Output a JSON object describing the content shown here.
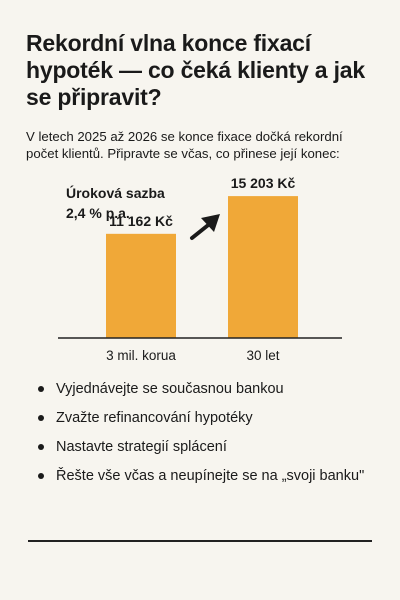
{
  "header": {
    "title": "Rekordní vlna konce fixací hypoték — co čeká klienty a jak se připravit?",
    "intro": "V letech 2025 až 2026 se konce fixace dočká rekordní počet klientů. Připravte se včas, co přinese její konec:"
  },
  "chart_data": {
    "type": "bar",
    "categories": [
      "3 mil. korua",
      "30 let"
    ],
    "values": [
      11162,
      15203
    ],
    "value_labels": [
      "11 162 Kč",
      "15 203 Kč"
    ],
    "annotation": [
      "Úroková sazba",
      "2,4 % p.a."
    ],
    "ylim": [
      0,
      18000
    ],
    "bar_color": "#f0a838",
    "arrow_color": "#1a1a1a",
    "grid": false,
    "title": "",
    "xlabel": "",
    "ylabel": ""
  },
  "bullets": [
    "Vyjednávejte se současnou bankou",
    "Zvažte refinancování hypotéky",
    "Nastavte strategií splácení",
    "Řešte vše včas a neupínejte se na „svoji banku\""
  ]
}
